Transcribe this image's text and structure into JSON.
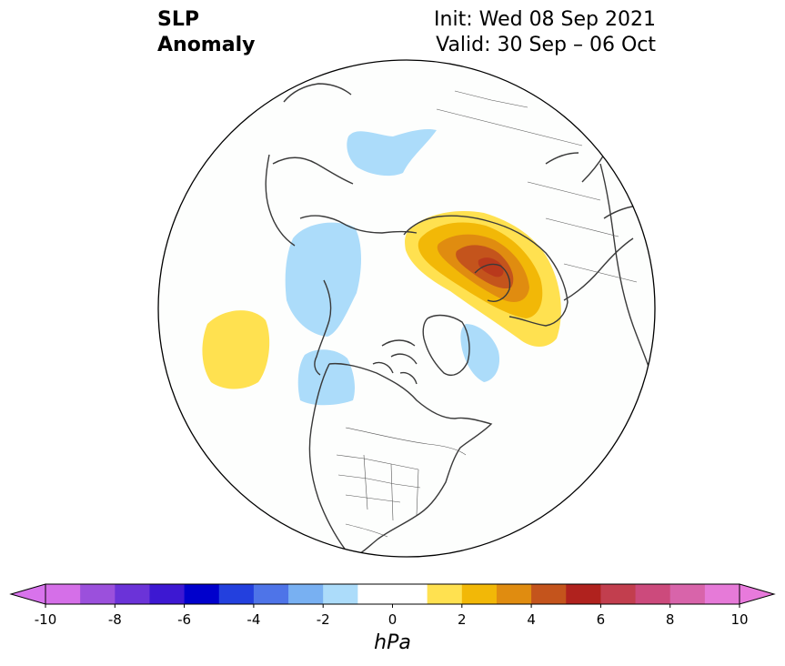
{
  "header": {
    "title_line1": "SLP",
    "title_line2": "Anomaly",
    "init_text": "Init: Wed 08 Sep 2021",
    "valid_text": "Valid: 30 Sep – 06 Oct"
  },
  "colorbar": {
    "unit": "hPa",
    "min": -10,
    "max": 10,
    "ticks": [
      -10,
      -8,
      -6,
      -4,
      -2,
      0,
      2,
      4,
      6,
      8,
      10
    ],
    "bins": [
      {
        "from": -10,
        "to": -9,
        "color": "#d56fe8"
      },
      {
        "from": -9,
        "to": -8,
        "color": "#9b50dc"
      },
      {
        "from": -8,
        "to": -7,
        "color": "#6b33d8"
      },
      {
        "from": -7,
        "to": -6,
        "color": "#3d18d2"
      },
      {
        "from": -6,
        "to": -5,
        "color": "#0000cc"
      },
      {
        "from": -5,
        "to": -4,
        "color": "#2340de"
      },
      {
        "from": -4,
        "to": -3,
        "color": "#4e74e8"
      },
      {
        "from": -3,
        "to": -2,
        "color": "#78b0f2"
      },
      {
        "from": -2,
        "to": -1,
        "color": "#acdcfa"
      },
      {
        "from": -1,
        "to": 0,
        "color": "#ffffff"
      },
      {
        "from": 0,
        "to": 1,
        "color": "#ffffff"
      },
      {
        "from": 1,
        "to": 2,
        "color": "#ffe150"
      },
      {
        "from": 2,
        "to": 3,
        "color": "#f2b807"
      },
      {
        "from": 3,
        "to": 4,
        "color": "#e08c10"
      },
      {
        "from": 4,
        "to": 5,
        "color": "#c4541c"
      },
      {
        "from": 5,
        "to": 6,
        "color": "#b0221e"
      },
      {
        "from": 6,
        "to": 7,
        "color": "#c23e4e"
      },
      {
        "from": 7,
        "to": 8,
        "color": "#cc4a7c"
      },
      {
        "from": 8,
        "to": 9,
        "color": "#d864aa"
      },
      {
        "from": 9,
        "to": 10,
        "color": "#e67ad8"
      }
    ],
    "under_color": "#d873ec",
    "over_color": "#e87adc"
  },
  "map": {
    "projection": "north-polar-stereographic",
    "ocean_color": "#fdfefd",
    "coastline_color": "#3a3a3a"
  }
}
